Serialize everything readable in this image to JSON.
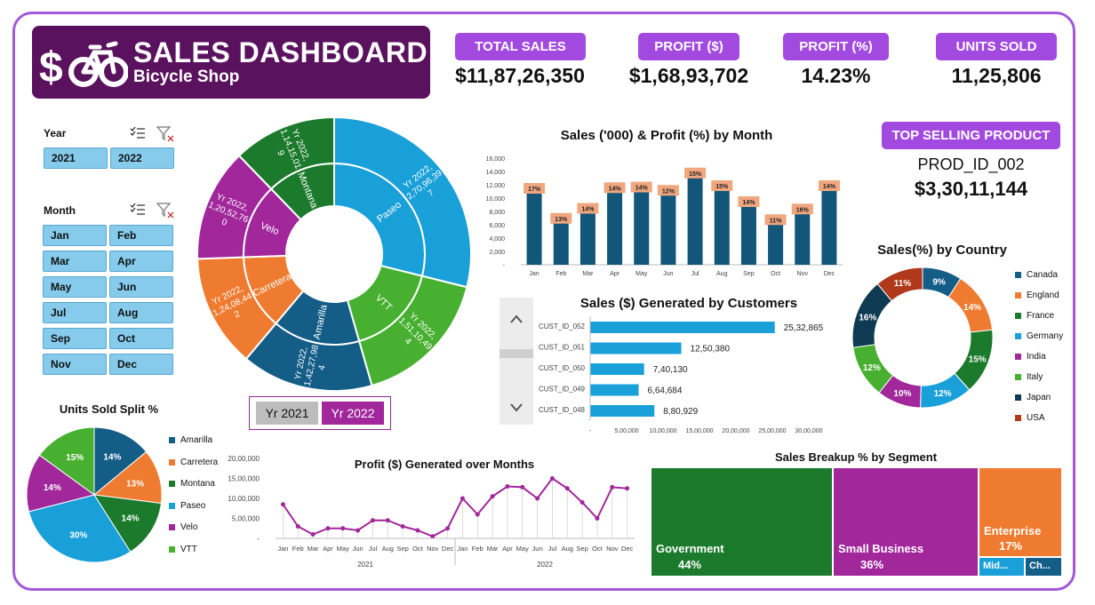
{
  "header": {
    "title": "SALES DASHBOARD",
    "subtitle": "Bicycle Shop"
  },
  "kpis": [
    {
      "label": "TOTAL SALES",
      "value": "$11,87,26,350"
    },
    {
      "label": "PROFIT ($)",
      "value": "$1,68,93,702"
    },
    {
      "label": "PROFIT (%)",
      "value": "14.23%"
    },
    {
      "label": "UNITS SOLD",
      "value": "11,25,806"
    }
  ],
  "top_product": {
    "label": "TOP SELLING PRODUCT",
    "product": "PROD_ID_002",
    "value": "$3,30,11,144"
  },
  "slicers": {
    "year_title": "Year",
    "years": [
      "2021",
      "2022"
    ],
    "month_title": "Month",
    "months": [
      "Jan",
      "Feb",
      "Mar",
      "Apr",
      "May",
      "Jun",
      "Jul",
      "Aug",
      "Sep",
      "Oct",
      "Nov",
      "Dec"
    ]
  },
  "sunburst_toggle": {
    "yr2021": "Yr 2021",
    "yr2022": "Yr 2022"
  },
  "colors": {
    "accent": "#a24ae0",
    "banner": "#5a125e",
    "bar": "#12567a",
    "pill": "#f0a77f",
    "line": "#a1279b",
    "hbar": "#1aa0d8"
  },
  "chart_data": [
    {
      "id": "sunburst",
      "type": "sunburst",
      "segments": [
        {
          "name": "Paseo",
          "outer_label": "Yr 2022, 2,70,96,39 7",
          "color": "#1aa0d8",
          "weight": 26
        },
        {
          "name": "VTT",
          "outer_label": "Yr 2022, 1,51,10,49 4",
          "color": "#48b030",
          "weight": 15
        },
        {
          "name": "Amarilla",
          "outer_label": "Yr 2022, 1,42,27,98 4",
          "color": "#145d87",
          "weight": 14
        },
        {
          "name": "Carretera",
          "outer_label": "Yr 2022, 1,24,08,44 2",
          "color": "#ef7b30",
          "weight": 12
        },
        {
          "name": "Velo",
          "outer_label": "Yr 2022, 1,20,52,76 0",
          "color": "#a1279b",
          "weight": 12
        },
        {
          "name": "Montana",
          "outer_label": "Yr 2022, 1,14,15,01 9",
          "color": "#1c7a2d",
          "weight": 11
        }
      ]
    },
    {
      "id": "monthly",
      "type": "bar",
      "title": "Sales ('000) & Profit (%) by Month",
      "categories": [
        "Jan",
        "Feb",
        "Mar",
        "Apr",
        "May",
        "Jun",
        "Jul",
        "Aug",
        "Sep",
        "Oct",
        "Nov",
        "Dec"
      ],
      "values": [
        10800,
        6300,
        7800,
        10900,
        11000,
        10500,
        13100,
        11200,
        8800,
        6100,
        7700,
        11200
      ],
      "profit_labels": [
        "17%",
        "13%",
        "14%",
        "14%",
        "14%",
        "12%",
        "15%",
        "15%",
        "14%",
        "11%",
        "16%",
        "14%"
      ],
      "yticks": [
        "16,000",
        "14,000",
        "12,000",
        "10,000",
        "8,000",
        "6,000",
        "4,000",
        "2,000",
        "-"
      ],
      "ylim": [
        0,
        16000
      ]
    },
    {
      "id": "customers",
      "type": "bar",
      "title": "Sales ($) Generated by Customers",
      "categories": [
        "CUST_ID_052",
        "CUST_ID_051",
        "CUST_ID_050",
        "CUST_ID_049",
        "CUST_ID_048"
      ],
      "values": [
        2532865,
        1250380,
        740130,
        664684,
        880929
      ],
      "value_labels": [
        "25,32,865",
        "12,50,380",
        "7,40,130",
        "6,64,684",
        "8,80,929"
      ],
      "xticks": [
        "-",
        "5,00,000",
        "10,00,000",
        "15,00,000",
        "20,00,000",
        "25,00,000",
        "30,00,000"
      ],
      "xlim": [
        0,
        3000000
      ]
    },
    {
      "id": "country",
      "type": "pie",
      "title": "Sales(%) by Country",
      "categories": [
        "Canada",
        "England",
        "France",
        "Germany",
        "India",
        "Italy",
        "Japan",
        "USA"
      ],
      "values": [
        9,
        14,
        15,
        12,
        10,
        12,
        16,
        11
      ],
      "labels": [
        "9%",
        "14%",
        "15%",
        "12%",
        "10%",
        "12%",
        "16%",
        "11%"
      ],
      "colors": [
        "#145d87",
        "#ef7b30",
        "#1c7a2d",
        "#1aa0d8",
        "#a1279b",
        "#48b030",
        "#0e3a52",
        "#b0391b"
      ]
    },
    {
      "id": "units",
      "type": "pie",
      "title": "Units Sold Split %",
      "categories": [
        "Amarilla",
        "Carretera",
        "Montana",
        "Paseo",
        "Velo",
        "VTT"
      ],
      "values": [
        14,
        13,
        14,
        30,
        14,
        15
      ],
      "labels": [
        "14%",
        "13%",
        "14%",
        "30%",
        "14%",
        "15%"
      ],
      "colors": [
        "#145d87",
        "#ef7b30",
        "#1c7a2d",
        "#1aa0d8",
        "#a1279b",
        "#48b030"
      ]
    },
    {
      "id": "profit_months",
      "type": "line",
      "title": "Profit ($) Generated over Months",
      "categories": [
        "Jan",
        "Feb",
        "Mar",
        "Apr",
        "May",
        "Jun",
        "Jul",
        "Aug",
        "Sep",
        "Oct",
        "Nov",
        "Dec",
        "Jan",
        "Feb",
        "Mar",
        "Apr",
        "May",
        "Jun",
        "Jul",
        "Aug",
        "Sep",
        "Oct",
        "Nov",
        "Dec"
      ],
      "groups": [
        "2021",
        "2022"
      ],
      "values": [
        850000,
        300000,
        100000,
        250000,
        250000,
        200000,
        450000,
        450000,
        300000,
        200000,
        50000,
        250000,
        1000000,
        600000,
        1050000,
        1300000,
        1280000,
        1000000,
        1500000,
        1250000,
        900000,
        500000,
        1280000,
        1250000
      ],
      "yticks": [
        "20,00,000",
        "15,00,000",
        "10,00,000",
        "5,00,000",
        "-"
      ],
      "ylim": [
        0,
        2000000
      ]
    },
    {
      "id": "segments",
      "type": "treemap",
      "title": "Sales Breakup % by Segment",
      "items": [
        {
          "name": "Government",
          "label": "44%",
          "value": 44,
          "color": "#1c7a2d"
        },
        {
          "name": "Small Business",
          "label": "36%",
          "value": 36,
          "color": "#a1279b"
        },
        {
          "name": "Enterprise",
          "label": "17%",
          "value": 17,
          "color": "#ef7b30"
        },
        {
          "name": "Mid...",
          "label": "",
          "value": 2,
          "color": "#1aa0d8"
        },
        {
          "name": "Ch...",
          "label": "",
          "value": 1,
          "color": "#145d87"
        }
      ]
    }
  ]
}
